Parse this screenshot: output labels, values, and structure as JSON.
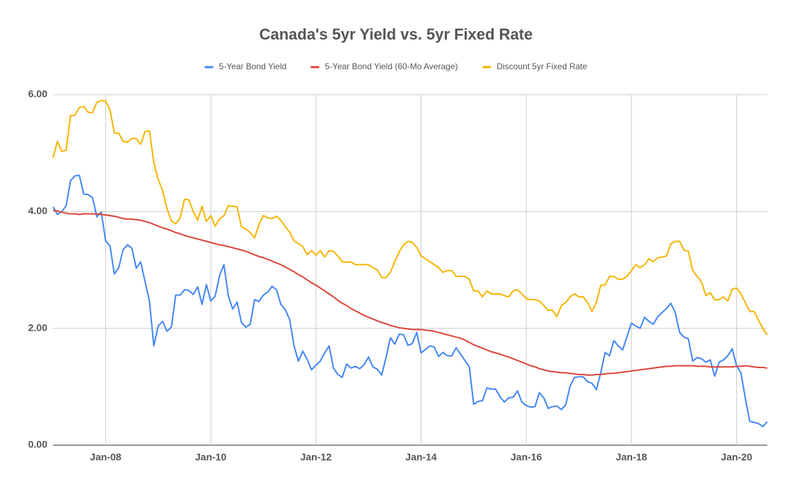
{
  "chart_data": {
    "type": "line",
    "title": "Canada's 5yr Yield vs. 5yr Fixed Rate",
    "categories": [
      null,
      null,
      null,
      null,
      null,
      null,
      null,
      null,
      null,
      null,
      null,
      null,
      "Jan-08",
      null,
      null,
      null,
      null,
      null,
      null,
      null,
      null,
      null,
      null,
      null,
      null,
      null,
      null,
      null,
      null,
      null,
      null,
      null,
      null,
      null,
      null,
      null,
      "Jan-10",
      null,
      null,
      null,
      null,
      null,
      null,
      null,
      null,
      null,
      null,
      null,
      null,
      null,
      null,
      null,
      null,
      null,
      null,
      null,
      null,
      null,
      null,
      null,
      "Jan-12",
      null,
      null,
      null,
      null,
      null,
      null,
      null,
      null,
      null,
      null,
      null,
      null,
      null,
      null,
      null,
      null,
      null,
      null,
      null,
      null,
      null,
      null,
      null,
      "Jan-14",
      null,
      null,
      null,
      null,
      null,
      null,
      null,
      null,
      null,
      null,
      null,
      null,
      null,
      null,
      null,
      null,
      null,
      null,
      null,
      null,
      null,
      null,
      null,
      "Jan-16",
      null,
      null,
      null,
      null,
      null,
      null,
      null,
      null,
      null,
      null,
      null,
      null,
      null,
      null,
      null,
      null,
      null,
      null,
      null,
      null,
      null,
      null,
      null,
      "Jan-18",
      null,
      null,
      null,
      null,
      null,
      null,
      null,
      null,
      null,
      null,
      null,
      null,
      null,
      null,
      null,
      null,
      null,
      null,
      null,
      null,
      null,
      null,
      null,
      "Jan-20",
      null,
      null,
      null,
      null,
      null,
      null,
      null
    ],
    "series": [
      {
        "name": "5-Year Bond Yield",
        "color": "#4285f4",
        "values": [
          4.08,
          3.95,
          4.0,
          4.1,
          4.53,
          4.61,
          4.62,
          4.3,
          4.29,
          4.24,
          3.91,
          3.99,
          3.5,
          3.41,
          2.93,
          3.04,
          3.35,
          3.43,
          3.37,
          3.03,
          3.14,
          2.8,
          2.47,
          1.7,
          2.04,
          2.12,
          1.95,
          2.02,
          2.57,
          2.57,
          2.66,
          2.65,
          2.58,
          2.71,
          2.41,
          2.75,
          2.47,
          2.55,
          2.9,
          3.09,
          2.56,
          2.33,
          2.45,
          2.1,
          2.02,
          2.07,
          2.49,
          2.46,
          2.57,
          2.62,
          2.72,
          2.66,
          2.41,
          2.32,
          2.15,
          1.7,
          1.44,
          1.61,
          1.47,
          1.29,
          1.37,
          1.44,
          1.58,
          1.7,
          1.32,
          1.21,
          1.16,
          1.39,
          1.32,
          1.35,
          1.31,
          1.38,
          1.51,
          1.34,
          1.3,
          1.2,
          1.5,
          1.84,
          1.73,
          1.9,
          1.89,
          1.71,
          1.74,
          1.93,
          1.58,
          1.64,
          1.7,
          1.68,
          1.52,
          1.59,
          1.53,
          1.53,
          1.67,
          1.56,
          1.45,
          1.34,
          0.7,
          0.75,
          0.76,
          0.98,
          0.96,
          0.96,
          0.83,
          0.74,
          0.81,
          0.82,
          0.93,
          0.74,
          0.68,
          0.65,
          0.66,
          0.9,
          0.81,
          0.63,
          0.66,
          0.67,
          0.61,
          0.69,
          1.01,
          1.16,
          1.17,
          1.17,
          1.09,
          1.06,
          0.95,
          1.24,
          1.59,
          1.53,
          1.79,
          1.7,
          1.63,
          1.86,
          2.09,
          2.04,
          2.0,
          2.19,
          2.12,
          2.07,
          2.2,
          2.27,
          2.34,
          2.43,
          2.27,
          1.93,
          1.85,
          1.82,
          1.44,
          1.5,
          1.48,
          1.42,
          1.46,
          1.18,
          1.42,
          1.46,
          1.53,
          1.65,
          1.36,
          1.24,
          0.8,
          0.41,
          0.39,
          0.37,
          0.32,
          0.4
        ]
      },
      {
        "name": "5-Year Bond Yield (60-Mo Average)",
        "color": "#db4437",
        "values": [
          4.02,
          4.01,
          3.99,
          3.97,
          3.96,
          3.96,
          3.95,
          3.96,
          3.96,
          3.96,
          3.96,
          3.95,
          3.94,
          3.93,
          3.92,
          3.9,
          3.88,
          3.87,
          3.87,
          3.86,
          3.85,
          3.83,
          3.81,
          3.78,
          3.75,
          3.72,
          3.7,
          3.67,
          3.64,
          3.62,
          3.59,
          3.57,
          3.55,
          3.53,
          3.51,
          3.49,
          3.47,
          3.45,
          3.43,
          3.42,
          3.4,
          3.38,
          3.36,
          3.34,
          3.32,
          3.29,
          3.26,
          3.23,
          3.21,
          3.18,
          3.15,
          3.12,
          3.09,
          3.05,
          3.01,
          2.97,
          2.92,
          2.88,
          2.83,
          2.78,
          2.74,
          2.69,
          2.64,
          2.59,
          2.54,
          2.48,
          2.43,
          2.39,
          2.34,
          2.3,
          2.26,
          2.22,
          2.19,
          2.16,
          2.13,
          2.1,
          2.08,
          2.05,
          2.03,
          2.01,
          2.0,
          1.99,
          1.98,
          1.98,
          1.98,
          1.97,
          1.96,
          1.95,
          1.93,
          1.91,
          1.89,
          1.87,
          1.85,
          1.83,
          1.8,
          1.76,
          1.72,
          1.69,
          1.66,
          1.63,
          1.6,
          1.58,
          1.56,
          1.53,
          1.51,
          1.48,
          1.45,
          1.42,
          1.39,
          1.36,
          1.34,
          1.31,
          1.29,
          1.27,
          1.26,
          1.25,
          1.24,
          1.24,
          1.23,
          1.22,
          1.21,
          1.21,
          1.2,
          1.2,
          1.21,
          1.21,
          1.22,
          1.23,
          1.23,
          1.24,
          1.25,
          1.26,
          1.27,
          1.28,
          1.29,
          1.3,
          1.31,
          1.32,
          1.33,
          1.34,
          1.35,
          1.35,
          1.36,
          1.36,
          1.36,
          1.36,
          1.36,
          1.35,
          1.35,
          1.35,
          1.34,
          1.34,
          1.34,
          1.34,
          1.34,
          1.34,
          1.35,
          1.35,
          1.36,
          1.35,
          1.34,
          1.33,
          1.33,
          1.32
        ]
      },
      {
        "name": "Discount 5yr Fixed Rate",
        "color": "#f4b400",
        "values": [
          4.92,
          5.2,
          5.03,
          5.05,
          5.64,
          5.65,
          5.78,
          5.8,
          5.7,
          5.69,
          5.87,
          5.9,
          5.89,
          5.74,
          5.34,
          5.34,
          5.2,
          5.19,
          5.25,
          5.25,
          5.15,
          5.37,
          5.38,
          4.84,
          4.55,
          4.36,
          4.05,
          3.84,
          3.79,
          3.89,
          4.21,
          4.2,
          4.0,
          3.85,
          4.09,
          3.83,
          3.93,
          3.75,
          3.87,
          3.93,
          4.1,
          4.09,
          4.08,
          3.74,
          3.7,
          3.64,
          3.55,
          3.78,
          3.93,
          3.89,
          3.88,
          3.92,
          3.85,
          3.74,
          3.65,
          3.5,
          3.45,
          3.4,
          3.26,
          3.33,
          3.25,
          3.33,
          3.22,
          3.33,
          3.32,
          3.24,
          3.14,
          3.13,
          3.14,
          3.09,
          3.09,
          3.09,
          3.09,
          3.04,
          3.0,
          2.87,
          2.87,
          2.96,
          3.14,
          3.31,
          3.43,
          3.49,
          3.47,
          3.39,
          3.24,
          3.19,
          3.14,
          3.09,
          3.04,
          2.96,
          2.99,
          2.99,
          2.89,
          2.89,
          2.89,
          2.84,
          2.64,
          2.64,
          2.54,
          2.64,
          2.59,
          2.59,
          2.59,
          2.56,
          2.54,
          2.64,
          2.66,
          2.59,
          2.51,
          2.49,
          2.49,
          2.47,
          2.39,
          2.31,
          2.31,
          2.2,
          2.39,
          2.44,
          2.54,
          2.59,
          2.54,
          2.54,
          2.44,
          2.29,
          2.44,
          2.74,
          2.74,
          2.89,
          2.89,
          2.84,
          2.84,
          2.89,
          2.99,
          3.09,
          3.04,
          3.09,
          3.19,
          3.14,
          3.21,
          3.22,
          3.24,
          3.45,
          3.49,
          3.49,
          3.34,
          3.32,
          2.99,
          2.89,
          2.79,
          2.56,
          2.61,
          2.49,
          2.49,
          2.54,
          2.47,
          2.67,
          2.69,
          2.59,
          2.44,
          2.29,
          2.29,
          2.14,
          2.0,
          1.89
        ]
      }
    ],
    "ylim": [
      0,
      6
    ],
    "yticks": [
      {
        "value": 0,
        "label": "0.00"
      },
      {
        "value": 2,
        "label": "2.00"
      },
      {
        "value": 4,
        "label": "4.00"
      },
      {
        "value": 6,
        "label": "6.00"
      }
    ],
    "grid": true,
    "legend": "top"
  }
}
